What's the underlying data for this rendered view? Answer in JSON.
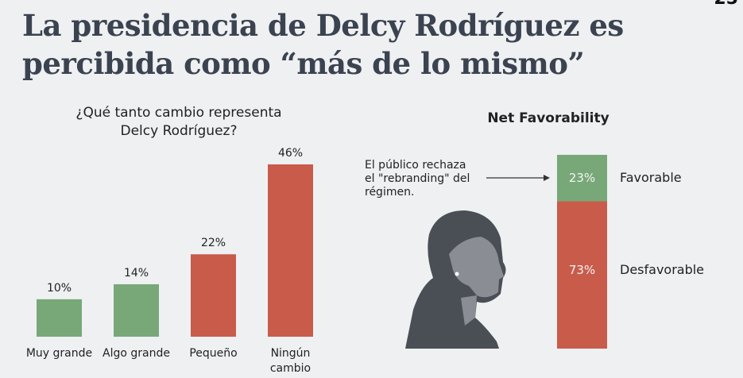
{
  "title": [
    "La presidencia de Delcy Rodríguez es",
    "percibida como “más de lo mismo”"
  ],
  "corner_number": "25",
  "chart_data": [
    {
      "type": "bar",
      "title": [
        "¿Qué tanto cambio representa",
        "Delcy Rodríguez?"
      ],
      "categories": [
        [
          "Muy grande"
        ],
        [
          "Algo grande"
        ],
        [
          "Pequeño"
        ],
        [
          "Ningún",
          "cambio"
        ]
      ],
      "values": [
        10,
        14,
        22,
        46
      ],
      "labels": [
        "10%",
        "14%",
        "22%",
        "46%"
      ],
      "colors": [
        "#78a878",
        "#78a878",
        "#c95b4b",
        "#c95b4b"
      ],
      "ylim": [
        0,
        46
      ]
    },
    {
      "type": "bar",
      "stacked": true,
      "title": "Net Favorability",
      "series": [
        {
          "name": "Favorable",
          "value": 23,
          "label": "23%",
          "color": "#78a878"
        },
        {
          "name": "Desfavorable",
          "value": 73,
          "label": "73%",
          "color": "#c95b4b"
        }
      ],
      "annotation": [
        "El público rechaza",
        "el \"rebranding\" del",
        "régimen."
      ]
    }
  ]
}
